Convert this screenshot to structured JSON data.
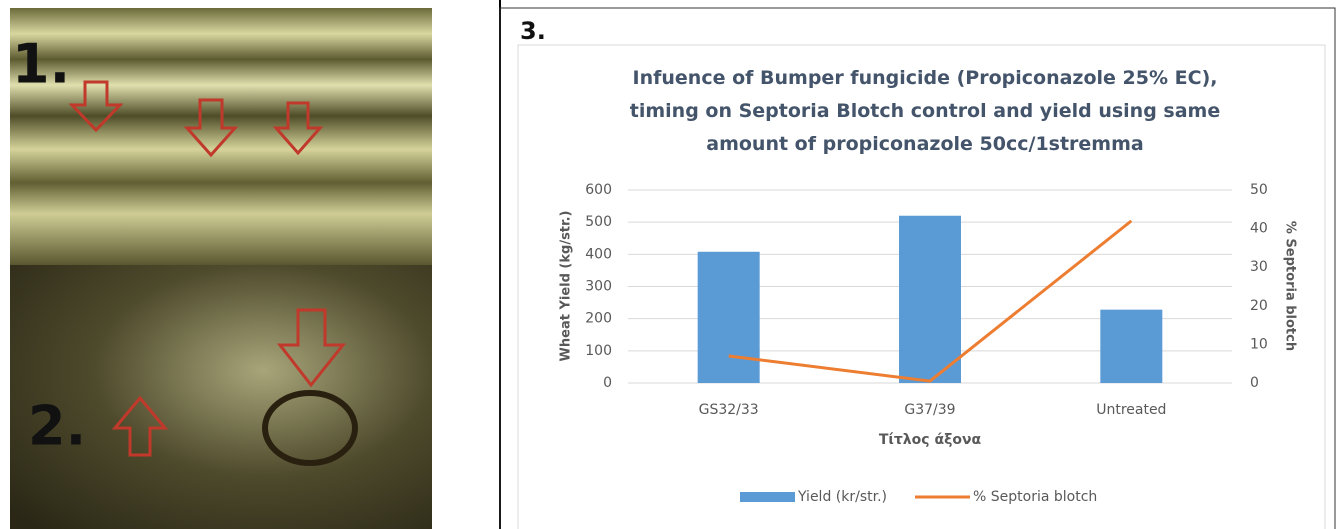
{
  "panels": {
    "labels": [
      "1.",
      "2.",
      "3."
    ]
  },
  "chart_data": {
    "type": "bar",
    "title": "Infuence of Bumper fungicide (Propiconazole 25% EC), timing on Septoria Blotch control and yield using same amount of propiconazole 50cc/1stremma",
    "categories": [
      "GS32/33",
      "G37/39",
      "Untreated"
    ],
    "x_label": "Τίτλος άξονα",
    "y_label": "Wheat Yield (kg/str.)",
    "y2_label": "% Septoria blotch",
    "series": [
      {
        "name": "Yield (kr/str.)",
        "type": "bar",
        "color": "#5b9bd5",
        "values": [
          408,
          520,
          228
        ]
      },
      {
        "name": "% Septoria blotch",
        "type": "line",
        "axis": "y2",
        "color": "#ed7d31",
        "values": [
          7,
          0.5,
          42
        ]
      }
    ],
    "ylim": [
      0,
      600
    ],
    "yticks": [
      0,
      100,
      200,
      300,
      400,
      500,
      600
    ],
    "y2lim": [
      0,
      50
    ],
    "y2ticks": [
      0,
      10,
      20,
      30,
      40,
      50
    ],
    "grid": true,
    "legend": "bottom"
  }
}
